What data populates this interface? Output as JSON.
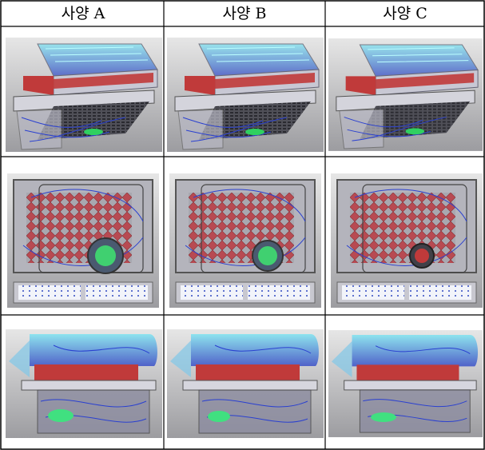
{
  "table": {
    "header": [
      "사양 A",
      "사양 B",
      "사양 C"
    ]
  }
}
